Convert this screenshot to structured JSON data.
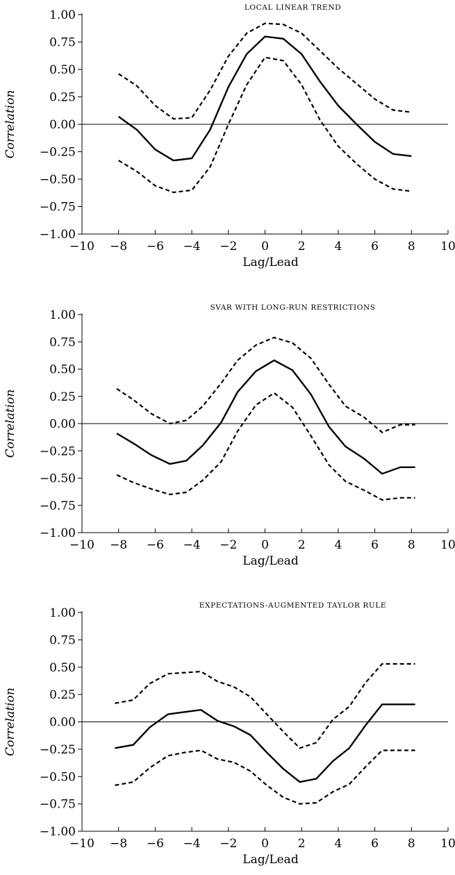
{
  "chart_data": [
    {
      "type": "line",
      "title": "LOCAL LINEAR TREND",
      "xlabel": "Lag/Lead",
      "ylabel": "Correlation",
      "xlim": [
        -10,
        10
      ],
      "ylim": [
        -1,
        1
      ],
      "xticks": [
        "−10",
        "−8",
        "−6",
        "−4",
        "−2",
        "0",
        "2",
        "4",
        "6",
        "8",
        "10"
      ],
      "yticks": [
        "1.00",
        "0.75",
        "0.50",
        "0.25",
        "0.00",
        "−0.25",
        "−0.50",
        "−0.75",
        "−1.00"
      ],
      "series": [
        {
          "style": "solid",
          "x": [
            -8,
            -7,
            -6,
            -5,
            -4,
            -3,
            -2,
            -1,
            0,
            1,
            2,
            3,
            4,
            5,
            6,
            7,
            8
          ],
          "y": [
            0.07,
            -0.05,
            -0.23,
            -0.33,
            -0.31,
            -0.05,
            0.34,
            0.64,
            0.8,
            0.78,
            0.64,
            0.39,
            0.17,
            0.0,
            -0.16,
            -0.27,
            -0.29
          ]
        },
        {
          "style": "dashed",
          "x": [
            -8,
            -7,
            -6,
            -5,
            -4,
            -3,
            -2,
            -1,
            0,
            1,
            2,
            3,
            4,
            5,
            6,
            7,
            8
          ],
          "y": [
            0.46,
            0.35,
            0.17,
            0.05,
            0.06,
            0.31,
            0.62,
            0.83,
            0.92,
            0.91,
            0.83,
            0.67,
            0.51,
            0.37,
            0.23,
            0.13,
            0.11
          ]
        },
        {
          "style": "dashed",
          "x": [
            -8,
            -7,
            -6,
            -5,
            -4,
            -3,
            -2,
            -1,
            0,
            1,
            2,
            3,
            4,
            5,
            6,
            7,
            8
          ],
          "y": [
            -0.33,
            -0.43,
            -0.56,
            -0.62,
            -0.6,
            -0.39,
            0.0,
            0.36,
            0.61,
            0.58,
            0.36,
            0.04,
            -0.2,
            -0.36,
            -0.5,
            -0.59,
            -0.61
          ]
        }
      ]
    },
    {
      "type": "line",
      "title": "SVAR WITH LONG-RUN RESTRICTIONS",
      "xlabel": "Lag/Lead",
      "ylabel": "Correlation",
      "xlim": [
        -10,
        10
      ],
      "ylim": [
        -1,
        1
      ],
      "xticks": [
        "−10",
        "−8",
        "−6",
        "−4",
        "−2",
        "0",
        "2",
        "4",
        "6",
        "8",
        "10"
      ],
      "yticks": [
        "1.00",
        "0.75",
        "0.50",
        "0.25",
        "0.00",
        "−0.25",
        "−0.50",
        "−0.75",
        "−1.00"
      ],
      "series": [
        {
          "style": "solid",
          "x": [
            -8.1,
            -7.2,
            -6.2,
            -5.2,
            -4.3,
            -3.4,
            -2.4,
            -1.5,
            -0.5,
            0.5,
            1.5,
            2.5,
            3.5,
            4.4,
            5.4,
            6.4,
            7.4,
            8.2
          ],
          "y": [
            -0.09,
            -0.18,
            -0.29,
            -0.37,
            -0.34,
            -0.2,
            0.01,
            0.29,
            0.48,
            0.58,
            0.49,
            0.27,
            -0.03,
            -0.21,
            -0.32,
            -0.46,
            -0.4,
            -0.4
          ]
        },
        {
          "style": "dashed",
          "x": [
            -8.1,
            -7.2,
            -6.2,
            -5.2,
            -4.3,
            -3.4,
            -2.4,
            -1.5,
            -0.5,
            0.5,
            1.5,
            2.5,
            3.5,
            4.4,
            5.4,
            6.4,
            7.4,
            8.2
          ],
          "y": [
            0.32,
            0.22,
            0.09,
            0.0,
            0.03,
            0.16,
            0.37,
            0.58,
            0.72,
            0.79,
            0.74,
            0.6,
            0.36,
            0.16,
            0.06,
            -0.08,
            -0.01,
            -0.01
          ]
        },
        {
          "style": "dashed",
          "x": [
            -8.1,
            -7.2,
            -6.2,
            -5.2,
            -4.3,
            -3.4,
            -2.4,
            -1.5,
            -0.5,
            0.5,
            1.5,
            2.5,
            3.5,
            4.4,
            5.4,
            6.4,
            7.4,
            8.2
          ],
          "y": [
            -0.47,
            -0.54,
            -0.6,
            -0.65,
            -0.63,
            -0.52,
            -0.35,
            -0.07,
            0.17,
            0.28,
            0.15,
            -0.11,
            -0.38,
            -0.53,
            -0.61,
            -0.7,
            -0.68,
            -0.68
          ]
        }
      ]
    },
    {
      "type": "line",
      "title": "EXPECTATIONS-AUGMENTED TAYLOR RULE",
      "xlabel": "Lag/Lead",
      "ylabel": "Correlation",
      "xlim": [
        -10,
        10
      ],
      "ylim": [
        -1,
        1
      ],
      "xticks": [
        "−10",
        "−8",
        "−6",
        "−4",
        "−2",
        "0",
        "2",
        "4",
        "6",
        "8",
        "10"
      ],
      "yticks": [
        "1.00",
        "0.75",
        "0.50",
        "0.25",
        "0.00",
        "−0.25",
        "−0.50",
        "−0.75",
        "−1.00"
      ],
      "series": [
        {
          "style": "solid",
          "x": [
            -8.2,
            -7.2,
            -6.3,
            -5.3,
            -4.4,
            -3.5,
            -2.6,
            -1.7,
            -0.8,
            0.1,
            1.0,
            1.9,
            2.8,
            3.7,
            4.6,
            5.5,
            6.4,
            7.3,
            8.2
          ],
          "y": [
            -0.24,
            -0.21,
            -0.05,
            0.07,
            0.09,
            0.11,
            0.01,
            -0.04,
            -0.12,
            -0.28,
            -0.43,
            -0.55,
            -0.52,
            -0.36,
            -0.24,
            -0.03,
            0.16,
            0.16,
            0.16
          ]
        },
        {
          "style": "dashed",
          "x": [
            -8.2,
            -7.2,
            -6.3,
            -5.3,
            -4.4,
            -3.5,
            -2.6,
            -1.7,
            -0.8,
            0.1,
            1.0,
            1.9,
            2.8,
            3.7,
            4.6,
            5.5,
            6.4,
            7.3,
            8.2
          ],
          "y": [
            0.17,
            0.2,
            0.35,
            0.44,
            0.45,
            0.46,
            0.37,
            0.32,
            0.23,
            0.07,
            -0.09,
            -0.24,
            -0.19,
            0.02,
            0.14,
            0.36,
            0.53,
            0.53,
            0.53
          ]
        },
        {
          "style": "dashed",
          "x": [
            -8.2,
            -7.2,
            -6.3,
            -5.3,
            -4.4,
            -3.5,
            -2.6,
            -1.7,
            -0.8,
            0.1,
            1.0,
            1.9,
            2.8,
            3.7,
            4.6,
            5.5,
            6.4,
            7.3,
            8.2
          ],
          "y": [
            -0.58,
            -0.55,
            -0.42,
            -0.31,
            -0.28,
            -0.26,
            -0.34,
            -0.37,
            -0.45,
            -0.58,
            -0.69,
            -0.75,
            -0.74,
            -0.64,
            -0.57,
            -0.41,
            -0.26,
            -0.26,
            -0.26
          ]
        }
      ]
    }
  ]
}
